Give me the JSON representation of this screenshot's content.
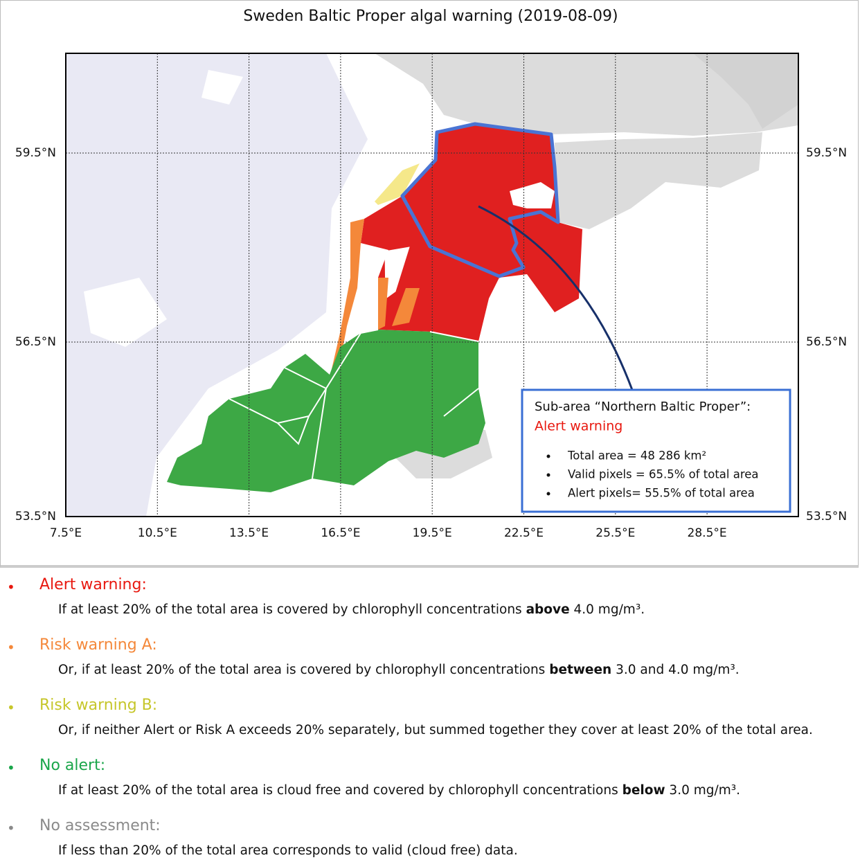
{
  "title": "Sweden Baltic Proper algal warning (2019-08-09)",
  "map": {
    "lon_labels": [
      "7.5°E",
      "10.5°E",
      "13.5°E",
      "16.5°E",
      "19.5°E",
      "22.5°E",
      "25.5°E",
      "28.5°E"
    ],
    "lat_labels": [
      "59.5°N",
      "56.5°N",
      "53.5°N"
    ]
  },
  "callout": {
    "heading": "Sub-area “Northern  Baltic Proper”:",
    "status": "Alert warning",
    "bullets": [
      "Total area = 48 286 km²",
      "Valid pixels = 65.5% of total area",
      "Alert pixels= 55.5% of total area"
    ]
  },
  "legend": [
    {
      "name": "Alert warning:",
      "color": "#e8180f",
      "description": [
        {
          "text": "If at least 20% of the total area is covered by chlorophyll concentrations ",
          "bold": false
        },
        {
          "text": "above",
          "bold": true
        },
        {
          "text": " 4.0 mg/m³.",
          "bold": false
        }
      ]
    },
    {
      "name": "Risk warning A:",
      "color": "#f4883a",
      "description": [
        {
          "text": "Or, if at least 20% of the total area is covered by chlorophyll concentrations ",
          "bold": false
        },
        {
          "text": "between",
          "bold": true
        },
        {
          "text": " 3.0 and 4.0 mg/m³.",
          "bold": false
        }
      ]
    },
    {
      "name": "Risk warning B:",
      "color": "#c6c62a",
      "description": [
        {
          "text": "Or, if neither Alert or Risk A exceeds 20% separately, but summed together they cover at least 20% of the total area.",
          "bold": false
        }
      ]
    },
    {
      "name": "No alert:",
      "color": "#1aa64a",
      "description": [
        {
          "text": "If at least 20% of the total area is cloud free and covered by chlorophyll concentrations ",
          "bold": false
        },
        {
          "text": "below",
          "bold": true
        },
        {
          "text": " 3.0 mg/m³.",
          "bold": false
        }
      ]
    },
    {
      "name": "No assessment:",
      "color": "#8a8a8a",
      "description": [
        {
          "text": "If less than 20% of the total area corresponds to valid (cloud free) data.",
          "bold": false
        }
      ]
    }
  ]
}
